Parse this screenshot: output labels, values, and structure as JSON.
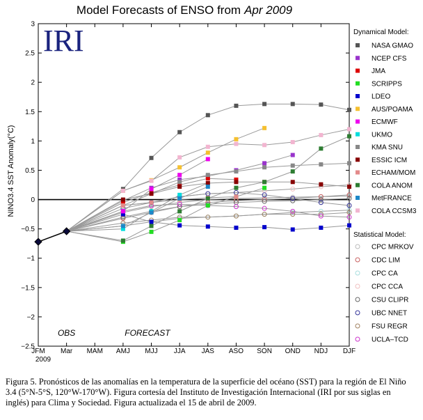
{
  "chart_data": {
    "type": "line",
    "title_prefix": "Model Forecasts of ENSO from",
    "title_date": "Apr 2009",
    "logo_text": "IRI",
    "ylabel": "NINO3.4 SST Anomaly(°C)",
    "ylim": [
      -2.5,
      3
    ],
    "yticks": [
      "−2.5",
      "−2",
      "−1.5",
      "−1",
      "−0.5",
      "0",
      "0.5",
      "1",
      "1.5",
      "2",
      "2.5",
      "3"
    ],
    "categories": [
      "JFM",
      "Mar",
      "MAM",
      "AMJ",
      "MJJ",
      "JJA",
      "JAS",
      "ASO",
      "SON",
      "OND",
      "NDJ",
      "DJF"
    ],
    "year_label": "2009",
    "obs_label": "OBS",
    "forecast_label": "FORECAST",
    "observed": [
      -0.72,
      -0.54
    ],
    "dynamical_title": "Dynamical Model:",
    "statistical_title": "Statistical Model:",
    "dynamical": [
      {
        "name": "NASA GMAO",
        "color": "#555555",
        "values": [
          0.18,
          0.71,
          1.15,
          1.44,
          1.6,
          1.63,
          1.63,
          1.62,
          1.53
        ]
      },
      {
        "name": "NCEP CFS",
        "color": "#9933cc",
        "values": [
          -0.02,
          0.2,
          0.34,
          0.4,
          0.5,
          0.62,
          0.76,
          null,
          null
        ]
      },
      {
        "name": "JMA",
        "color": "#dd0000",
        "values": [
          -0.05,
          0.12,
          0.25,
          0.36,
          0.34,
          null,
          null,
          null,
          null
        ]
      },
      {
        "name": "SCRIPPS",
        "color": "#22dd22",
        "values": [
          -0.72,
          -0.55,
          -0.35,
          -0.1,
          0.05,
          0.2,
          null,
          null,
          null
        ]
      },
      {
        "name": "LDEO",
        "color": "#0000cc",
        "values": [
          -0.25,
          -0.38,
          -0.44,
          -0.46,
          -0.48,
          -0.47,
          -0.51,
          -0.48,
          -0.44
        ]
      },
      {
        "name": "AUS/POAMA",
        "color": "#f5c030",
        "values": [
          0.15,
          0.33,
          0.55,
          0.8,
          1.03,
          1.22,
          null,
          null,
          null
        ]
      },
      {
        "name": "ECMWF",
        "color": "#ee00ee",
        "values": [
          -0.2,
          0.18,
          0.42,
          0.69,
          null,
          null,
          null,
          null,
          null
        ]
      },
      {
        "name": "UKMO",
        "color": "#00dddd",
        "values": [
          -0.5,
          -0.2,
          0.08,
          0.28,
          null,
          null,
          null,
          null,
          null
        ]
      },
      {
        "name": "KMA SNU",
        "color": "#888888",
        "values": [
          -0.1,
          0.1,
          0.3,
          0.42,
          0.48,
          0.55,
          0.58,
          0.6,
          0.62
        ]
      },
      {
        "name": "ESSIC ICM",
        "color": "#880000",
        "values": [
          0.0,
          0.1,
          0.22,
          0.28,
          0.3,
          0.3,
          0.3,
          0.26,
          0.22
        ]
      },
      {
        "name": "ECHAM/MOM",
        "color": "#e38a8a",
        "values": [
          -0.1,
          -0.05,
          0.0,
          0.03,
          0.05,
          null,
          null,
          null,
          null
        ]
      },
      {
        "name": "COLA ANOM",
        "color": "#2e7d32",
        "values": [
          -0.7,
          -0.45,
          -0.2,
          0.02,
          0.2,
          0.3,
          0.48,
          0.87,
          1.08
        ]
      },
      {
        "name": "MetFRANCE",
        "color": "#1e88c8",
        "values": [
          -0.45,
          -0.22,
          0.02,
          0.22,
          null,
          null,
          null,
          null,
          null
        ]
      },
      {
        "name": "COLA CCSM3",
        "color": "#f2b5d0",
        "values": [
          0.15,
          0.32,
          0.72,
          0.9,
          0.95,
          0.93,
          0.98,
          1.1,
          1.2
        ]
      }
    ],
    "statistical": [
      {
        "name": "CPC MRKOV",
        "color": "#bbbbbb",
        "values": [
          -0.22,
          -0.12,
          -0.05,
          0.0,
          0.02,
          0.03,
          0.04,
          0.05,
          0.06
        ]
      },
      {
        "name": "CDC LIM",
        "color": "#c86060",
        "values": [
          -0.32,
          -0.22,
          -0.12,
          -0.05,
          -0.02,
          0.0,
          0.02,
          0.05,
          0.08
        ]
      },
      {
        "name": "CPC CA",
        "color": "#a8dede",
        "values": [
          -0.45,
          -0.38,
          -0.32,
          -0.3,
          -0.28,
          -0.25,
          -0.22,
          -0.2,
          -0.18
        ]
      },
      {
        "name": "CPC CCA",
        "color": "#f0c0c0",
        "values": [
          -0.1,
          -0.05,
          0.05,
          0.1,
          0.12,
          0.15,
          0.18,
          0.22,
          0.25
        ]
      },
      {
        "name": "CSU CLIPR",
        "color": "#666666",
        "values": [
          -0.3,
          -0.2,
          -0.12,
          -0.08,
          -0.05,
          -0.03,
          -0.02,
          0.0,
          0.02
        ]
      },
      {
        "name": "UBC NNET",
        "color": "#333399",
        "values": [
          -0.15,
          -0.05,
          0.05,
          0.1,
          0.12,
          0.08,
          0.02,
          -0.05,
          -0.1
        ]
      },
      {
        "name": "FSU REGR",
        "color": "#a08060",
        "values": [
          -0.4,
          -0.35,
          -0.3,
          -0.3,
          -0.28,
          -0.25,
          -0.25,
          -0.25,
          -0.22
        ]
      },
      {
        "name": "UCLA–TCD",
        "color": "#cc33cc",
        "values": [
          -0.2,
          -0.1,
          -0.08,
          -0.1,
          -0.12,
          -0.15,
          -0.2,
          -0.28,
          -0.3
        ]
      }
    ]
  },
  "caption": "Figura 5. Pronósticos de las anomalías en la temperatura de la superficie del océano (SST) para la región de El Niño 3.4 (5°N-5°S, 120°W-170°W). Figura cortesía del Instituto de Investigación Internacional (IRI por sus siglas en inglés) para Clima y Sociedad. Figura actualizada el 15 de abril de 2009."
}
